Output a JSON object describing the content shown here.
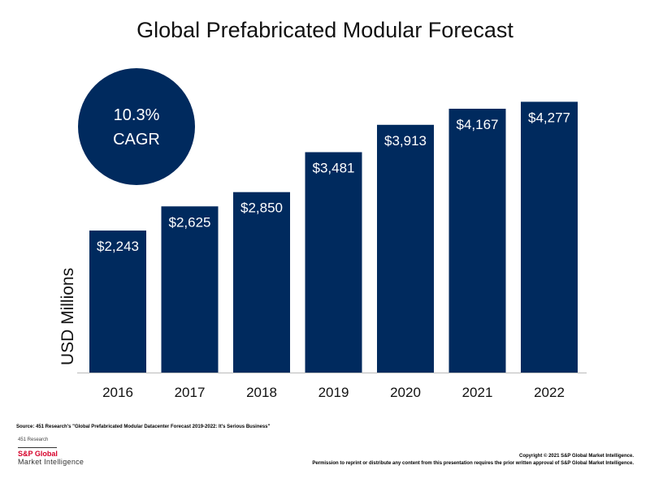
{
  "chart_data": {
    "type": "bar",
    "title": "Global Prefabricated Modular Forecast",
    "ylabel": "USD Millions",
    "xlabel": "",
    "categories": [
      "2016",
      "2017",
      "2018",
      "2019",
      "2020",
      "2021",
      "2022"
    ],
    "values": [
      2243,
      2625,
      2850,
      3481,
      3913,
      4167,
      4277
    ],
    "data_labels": [
      "$2,243",
      "$2,625",
      "$2,850",
      "$3,481",
      "$3,913",
      "$4,167",
      "$4,277"
    ],
    "ylim": [
      0,
      4500
    ],
    "grid": false,
    "bar_color": "#002a5e",
    "annotation": {
      "line1": "10.3%",
      "line2": "CAGR"
    }
  },
  "footer": {
    "source": "Source: 451 Research's \"Global Prefabricated Modular Datacenter Forecast 2019-2022: It's Serious Business\"",
    "research": "451 Research",
    "logo_line1": "S&P Global",
    "logo_line2": "Market Intelligence",
    "copyright": "Copyright © 2021 S&P Global Market Intelligence.",
    "permission": "Permission to reprint or distribute any content from this presentation requires the prior written approval of S&P Global Market Intelligence."
  },
  "colors": {
    "navy": "#002a5e",
    "brand_red": "#d6002a"
  }
}
